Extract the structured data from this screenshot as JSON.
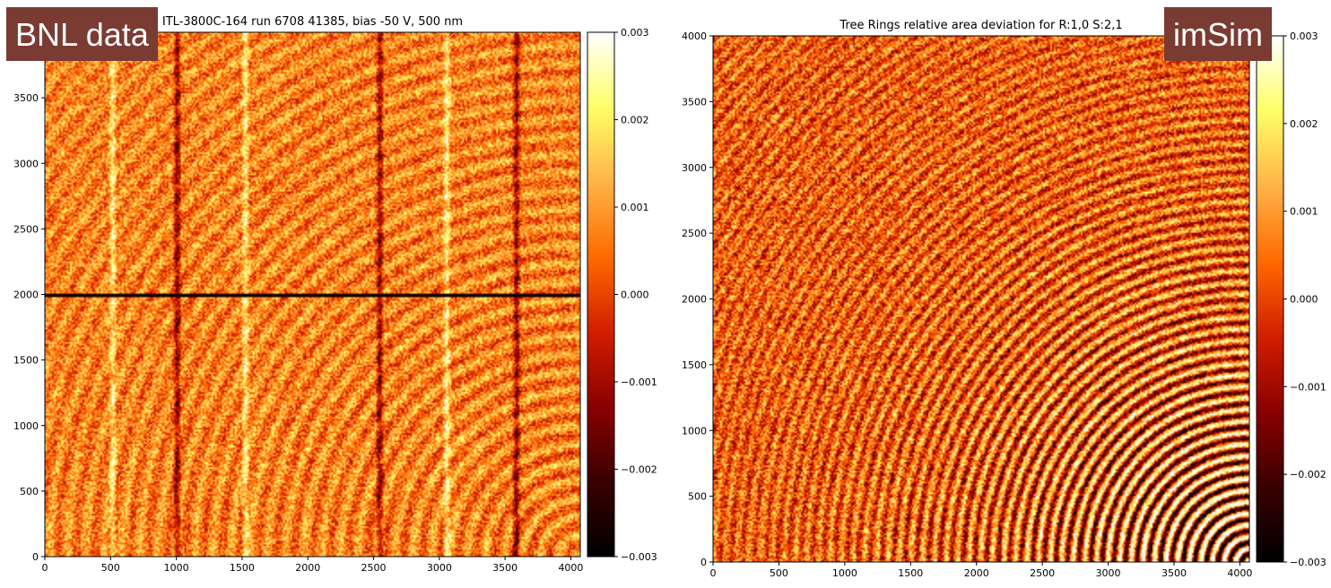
{
  "overlays": {
    "left_badge": "BNL data",
    "right_badge": "imSim"
  },
  "colors": {
    "badge_bg": "#7a3b33",
    "colormap": "afmhot",
    "colormap_stops": [
      "#000000",
      "#3a0000",
      "#8b0000",
      "#d21e00",
      "#ff6a00",
      "#ffb347",
      "#ffff66",
      "#ffffff"
    ]
  },
  "chart_data": [
    {
      "type": "heatmap",
      "title": "ITL-3800C-164 run 6708 41385, bias -50 V, 500 nm",
      "xlabel": "",
      "ylabel": "",
      "xlim": [
        0,
        4072
      ],
      "ylim": [
        0,
        4000
      ],
      "x_ticks": [
        "0",
        "500",
        "1000",
        "1500",
        "2000",
        "2500",
        "3000",
        "3500",
        "4000"
      ],
      "x_tick_values": [
        0,
        500,
        1000,
        1500,
        2000,
        2500,
        3000,
        3500,
        4000
      ],
      "y_ticks": [
        "0",
        "500",
        "1000",
        "1500",
        "2000",
        "2500",
        "3000",
        "3500"
      ],
      "y_tick_values": [
        0,
        500,
        1000,
        1500,
        2000,
        2500,
        3000,
        3500
      ],
      "colorbar": {
        "range": [
          -0.003,
          0.003
        ],
        "ticks": [
          "0.003",
          "0.002",
          "0.001",
          "0.000",
          "−0.001",
          "−0.002",
          "−0.003"
        ],
        "tick_values": [
          0.003,
          0.002,
          0.001,
          0.0,
          -0.001,
          -0.002,
          -0.003
        ]
      },
      "features": {
        "ring_center": [
          4072,
          0
        ],
        "amp_boundary_y": 2000,
        "column_x": [
          510,
          1000,
          1520,
          2540,
          3050,
          3580
        ]
      }
    },
    {
      "type": "heatmap",
      "title": "Tree Rings relative area deviation for R:1,0 S:2,1",
      "xlabel": "",
      "ylabel": "",
      "xlim": [
        0,
        4072
      ],
      "ylim": [
        0,
        4000
      ],
      "x_ticks": [
        "0",
        "500",
        "1000",
        "1500",
        "2000",
        "2500",
        "3000",
        "3500",
        "4000"
      ],
      "x_tick_values": [
        0,
        500,
        1000,
        1500,
        2000,
        2500,
        3000,
        3500,
        4000
      ],
      "y_ticks": [
        "0",
        "500",
        "1000",
        "1500",
        "2000",
        "2500",
        "3000",
        "3500",
        "4000"
      ],
      "y_tick_values": [
        0,
        500,
        1000,
        1500,
        2000,
        2500,
        3000,
        3500,
        4000
      ],
      "colorbar": {
        "range": [
          -0.003,
          0.003
        ],
        "ticks": [
          "0.003",
          "0.002",
          "0.001",
          "0.000",
          "−0.001",
          "−0.002",
          "−0.003"
        ],
        "tick_values": [
          0.003,
          0.002,
          0.001,
          0.0,
          -0.001,
          -0.002,
          -0.003
        ]
      },
      "features": {
        "ring_center": [
          4072,
          0
        ]
      }
    }
  ]
}
